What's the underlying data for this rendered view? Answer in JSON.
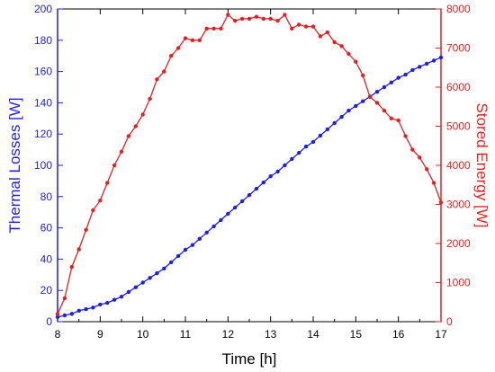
{
  "chart_data": {
    "type": "line",
    "xlabel": "Time [h]",
    "ylabel_left": "Thermal Losses [W]",
    "ylabel_right": "Stored Energy [W]",
    "xlim": [
      8,
      17
    ],
    "ylim_left": [
      0,
      200
    ],
    "ylim_right": [
      0,
      8000
    ],
    "x_ticks": [
      "8",
      "9",
      "10",
      "11",
      "12",
      "13",
      "14",
      "15",
      "16",
      "17"
    ],
    "y_left_ticks": [
      "0",
      "20",
      "40",
      "60",
      "80",
      "100",
      "120",
      "140",
      "160",
      "180",
      "200"
    ],
    "y_right_ticks": [
      "0",
      "1000",
      "2000",
      "3000",
      "4000",
      "5000",
      "6000",
      "7000",
      "8000"
    ],
    "grid": false,
    "colors": {
      "left_series": "#1f1fe6",
      "right_series": "#e61f1f",
      "axes": "#000000"
    },
    "x": [
      8.0,
      8.1667,
      8.3333,
      8.5,
      8.6667,
      8.8333,
      9.0,
      9.1667,
      9.3333,
      9.5,
      9.6667,
      9.8333,
      10.0,
      10.1667,
      10.3333,
      10.5,
      10.6667,
      10.8333,
      11.0,
      11.1667,
      11.3333,
      11.5,
      11.6667,
      11.8333,
      12.0,
      12.1667,
      12.3333,
      12.5,
      12.6667,
      12.8333,
      13.0,
      13.1667,
      13.3333,
      13.5,
      13.6667,
      13.8333,
      14.0,
      14.1667,
      14.3333,
      14.5,
      14.6667,
      14.8333,
      15.0,
      15.1667,
      15.3333,
      15.5,
      15.6667,
      15.8333,
      16.0,
      16.1667,
      16.3333,
      16.5,
      16.6667,
      16.8333,
      17.0
    ],
    "series": [
      {
        "axis": "left",
        "values": [
          3,
          4,
          5,
          7,
          8,
          9,
          11,
          12,
          14,
          16,
          19,
          22,
          25,
          28,
          31,
          34,
          38,
          42,
          46,
          49,
          53,
          57,
          61,
          65,
          69,
          73,
          77,
          81,
          85,
          89,
          93,
          96,
          100,
          104,
          108,
          112,
          115,
          119,
          123,
          127,
          131,
          135,
          138,
          141,
          144,
          147,
          150,
          153,
          156,
          158,
          161,
          163,
          165,
          167,
          169
        ]
      },
      {
        "axis": "right",
        "values": [
          200,
          600,
          1400,
          1850,
          2350,
          2850,
          3100,
          3550,
          4000,
          4350,
          4750,
          5000,
          5300,
          5700,
          6200,
          6400,
          6800,
          7000,
          7250,
          7200,
          7200,
          7500,
          7500,
          7500,
          7850,
          7700,
          7750,
          7750,
          7800,
          7750,
          7750,
          7700,
          7850,
          7500,
          7600,
          7550,
          7550,
          7300,
          7400,
          7150,
          7050,
          6850,
          6650,
          6300,
          5750,
          5600,
          5400,
          5200,
          5150,
          4750,
          4400,
          4200,
          3900,
          3550,
          3050
        ]
      }
    ]
  }
}
